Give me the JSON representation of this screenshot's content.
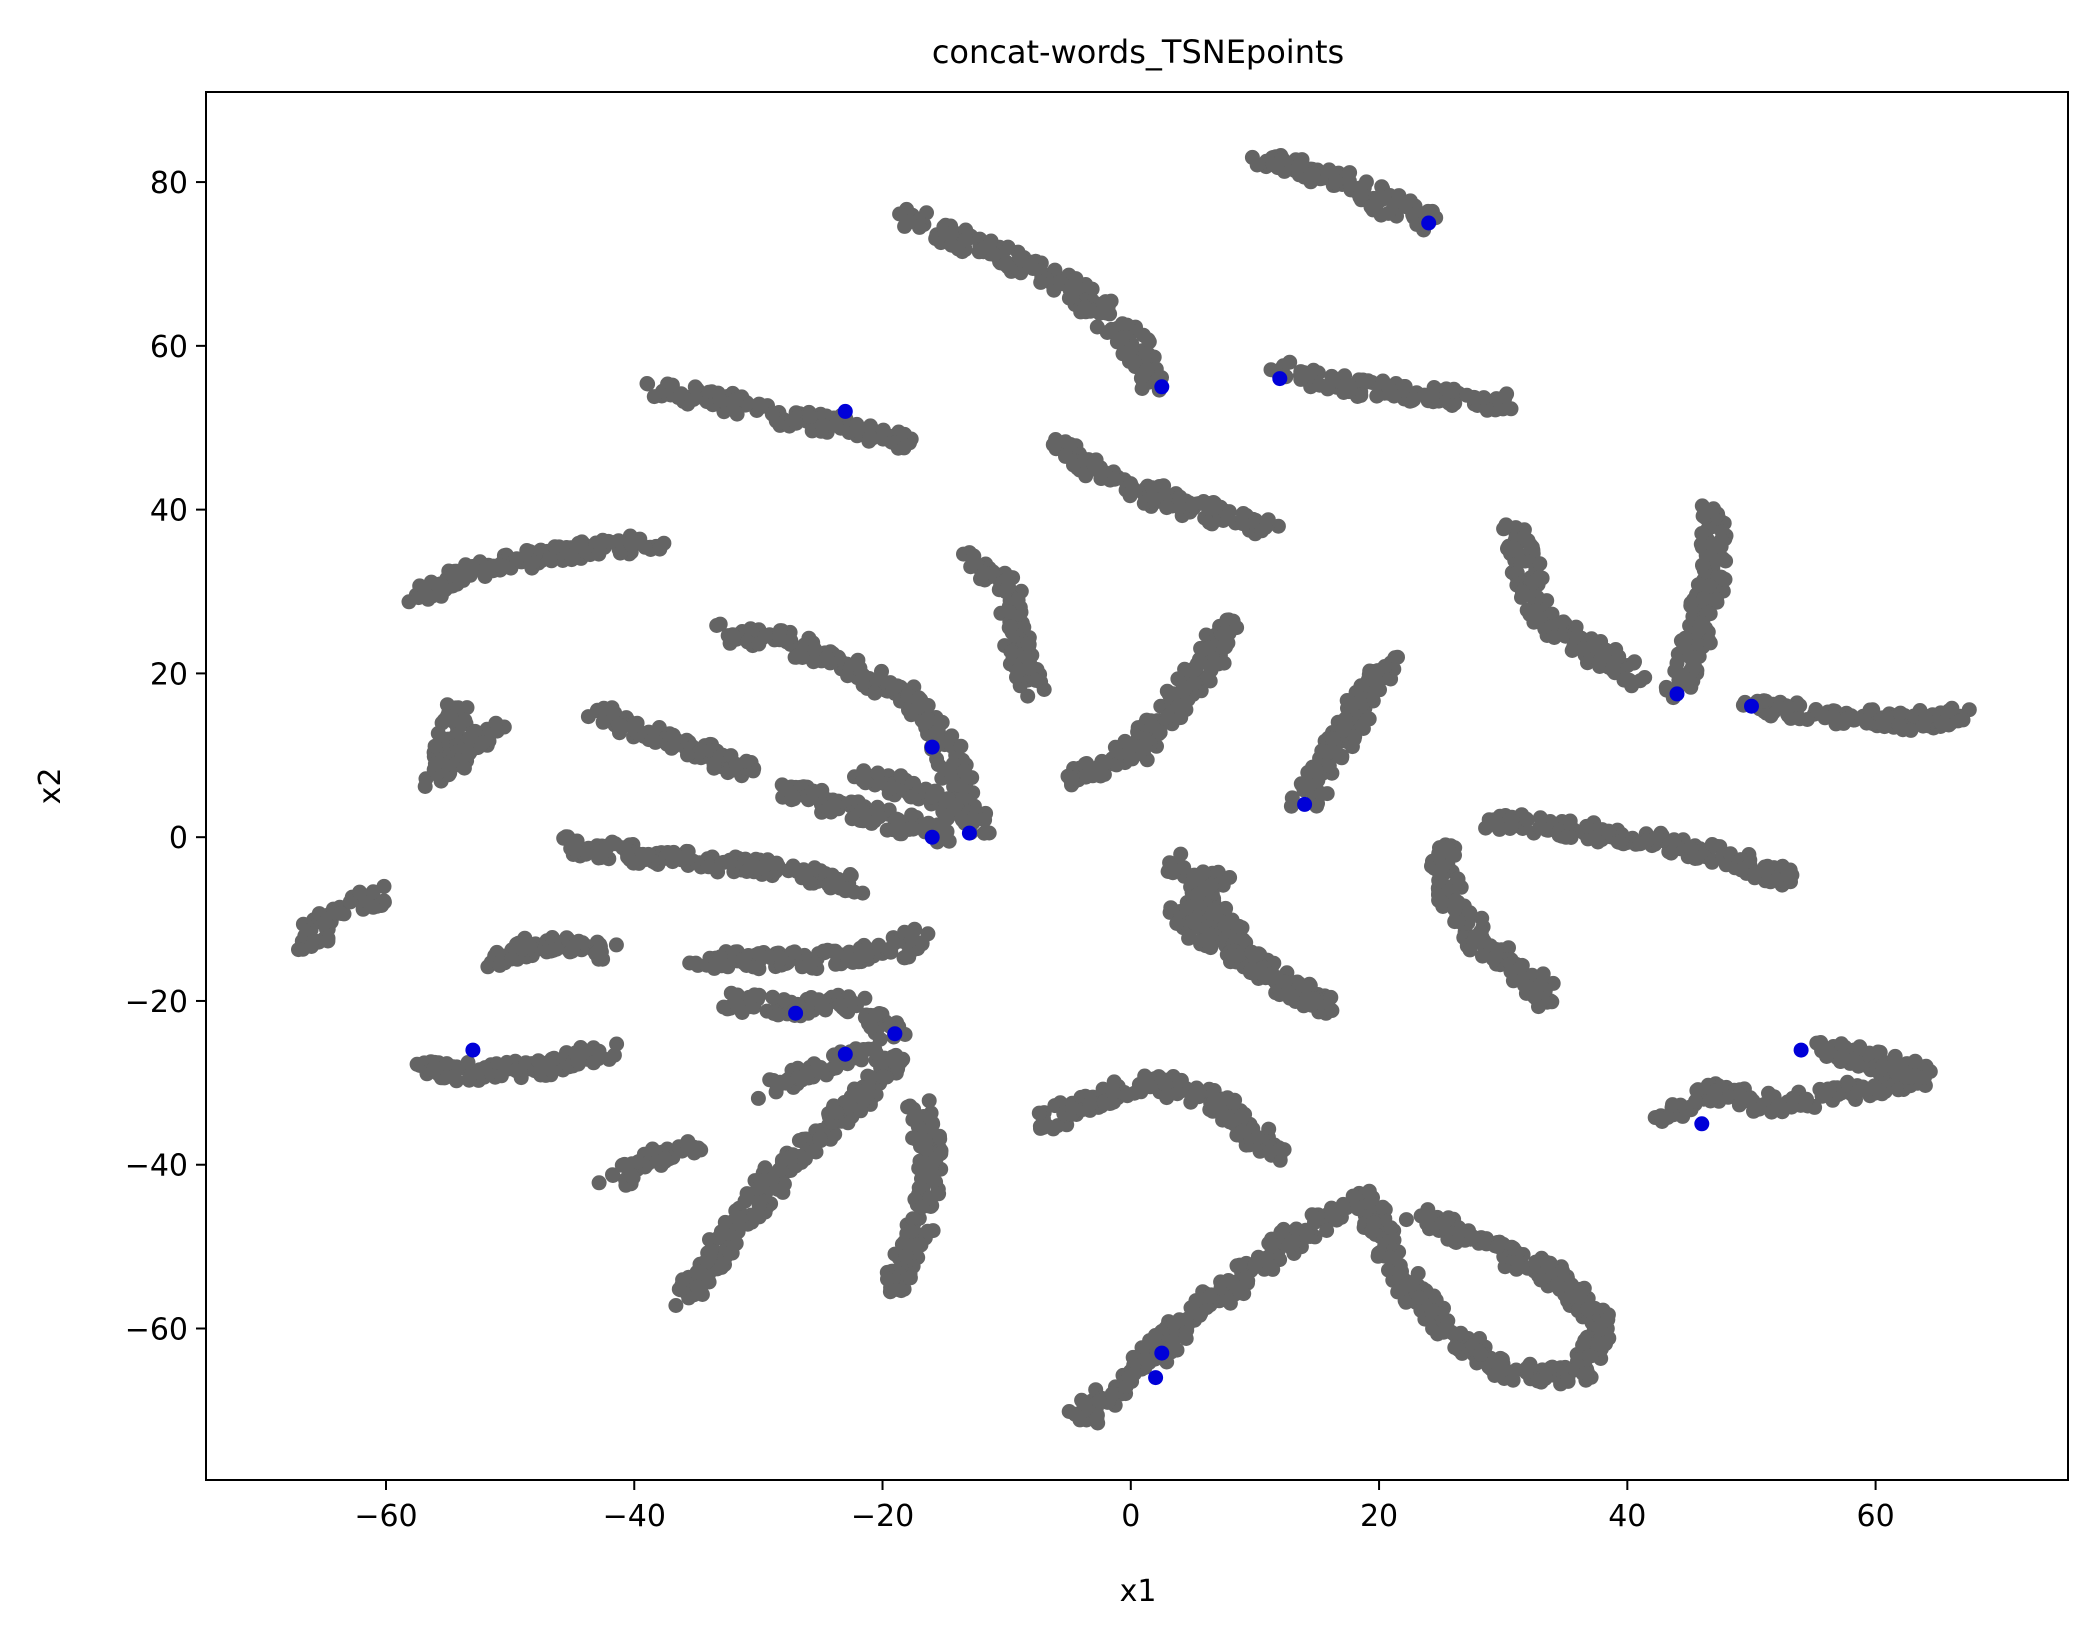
{
  "chart_data": {
    "type": "scatter",
    "title": "concat-words_TSNEpoints",
    "xlabel": "x1",
    "ylabel": "x2",
    "xlim": [
      -74.5,
      75.5
    ],
    "ylim": [
      -78.5,
      91
    ],
    "xticks": [
      -60,
      -40,
      -20,
      0,
      20,
      40,
      60
    ],
    "yticks": [
      -60,
      -40,
      -20,
      0,
      20,
      40,
      60,
      80
    ],
    "xtick_labels": [
      "−60",
      "−40",
      "−20",
      "0",
      "20",
      "40",
      "60"
    ],
    "ytick_labels": [
      "−60",
      "−40",
      "−20",
      "0",
      "20",
      "40",
      "60",
      "80"
    ],
    "grid": false,
    "legend": "none",
    "colors": {
      "main": "#646464",
      "highlight": "#0000d8"
    },
    "series": [
      {
        "color": "#646464",
        "clusters": [
          [
            [
              10,
              83
            ],
            [
              15,
              81
            ],
            [
              20,
              78
            ],
            [
              24,
              75
            ]
          ],
          [
            [
              -18,
              76
            ],
            [
              -12,
              72
            ],
            [
              -7,
              69
            ],
            [
              -3,
              65
            ],
            [
              0,
              61
            ],
            [
              2,
              55
            ]
          ],
          [
            [
              -38,
              55
            ],
            [
              -32,
              53
            ],
            [
              -27,
              51
            ],
            [
              -22,
              50
            ],
            [
              -18,
              48
            ]
          ],
          [
            [
              12,
              57
            ],
            [
              18,
              55
            ],
            [
              24,
              54
            ],
            [
              30,
              53
            ]
          ],
          [
            [
              -6,
              48
            ],
            [
              -2,
              44
            ],
            [
              3,
              41
            ],
            [
              8,
              39
            ],
            [
              11,
              38
            ]
          ],
          [
            [
              -58,
              29
            ],
            [
              -54,
              32
            ],
            [
              -49,
              34
            ],
            [
              -44,
              35
            ],
            [
              -38,
              36
            ]
          ],
          [
            [
              -13,
              34
            ],
            [
              -10,
              30
            ],
            [
              -9,
              24
            ],
            [
              -8,
              18
            ]
          ],
          [
            [
              31,
              38
            ],
            [
              32,
              32
            ],
            [
              33,
              27
            ],
            [
              37,
              23
            ],
            [
              41,
              19
            ]
          ],
          [
            [
              47,
              40
            ],
            [
              47,
              33
            ],
            [
              46,
              26
            ],
            [
              44,
              18
            ]
          ],
          [
            [
              -33,
              25
            ],
            [
              -28,
              24
            ],
            [
              -23,
              21
            ],
            [
              -18,
              17
            ],
            [
              -15,
              11
            ],
            [
              -13,
              3
            ],
            [
              -12,
              1
            ]
          ],
          [
            [
              -5,
              7
            ],
            [
              0,
              10
            ],
            [
              3,
              15
            ],
            [
              6,
              21
            ],
            [
              8,
              26
            ]
          ],
          [
            [
              14,
              4
            ],
            [
              16,
              9
            ],
            [
              18,
              15
            ],
            [
              21,
              22
            ]
          ],
          [
            [
              -54,
              16
            ],
            [
              -55,
              12
            ],
            [
              -56,
              7
            ],
            [
              -51,
              14
            ]
          ],
          [
            [
              -43,
              15
            ],
            [
              -38,
              12
            ],
            [
              -34,
              10
            ],
            [
              -31,
              8
            ]
          ],
          [
            [
              -28,
              6
            ],
            [
              -24,
              4
            ],
            [
              -19,
              2
            ],
            [
              -15,
              0
            ]
          ],
          [
            [
              -22,
              8
            ],
            [
              -18,
              6
            ],
            [
              -14,
              3
            ]
          ],
          [
            [
              50,
              16
            ],
            [
              56,
              15
            ],
            [
              62,
              14
            ],
            [
              68,
              15
            ]
          ],
          [
            [
              -46,
              -1
            ],
            [
              -40,
              -2
            ],
            [
              -34,
              -3
            ],
            [
              -28,
              -4
            ],
            [
              -22,
              -6
            ]
          ],
          [
            [
              29,
              2
            ],
            [
              35,
              1
            ],
            [
              41,
              0
            ],
            [
              47,
              -2
            ],
            [
              53,
              -5
            ]
          ],
          [
            [
              25,
              -1
            ],
            [
              26,
              -8
            ],
            [
              28,
              -13
            ],
            [
              31,
              -16
            ],
            [
              34,
              -20
            ]
          ],
          [
            [
              3,
              -3
            ],
            [
              6,
              -8
            ],
            [
              9,
              -14
            ],
            [
              12,
              -18
            ],
            [
              16,
              -21
            ],
            [
              4,
              -10
            ],
            [
              7,
              -4
            ]
          ],
          [
            [
              -66,
              -13
            ],
            [
              -65,
              -10
            ],
            [
              -62,
              -8
            ],
            [
              -60,
              -7
            ]
          ],
          [
            [
              -52,
              -15
            ],
            [
              -47,
              -13
            ],
            [
              -42,
              -14
            ]
          ],
          [
            [
              -35,
              -15
            ],
            [
              -30,
              -15
            ],
            [
              -24,
              -15
            ],
            [
              -19,
              -14
            ],
            [
              -17,
              -12
            ]
          ],
          [
            [
              -57,
              -28
            ],
            [
              -52,
              -29
            ],
            [
              -47,
              -28
            ],
            [
              -42,
              -26
            ]
          ],
          [
            [
              -33,
              -20
            ],
            [
              -27,
              -21
            ],
            [
              -23,
              -20
            ],
            [
              -19,
              -24
            ]
          ],
          [
            [
              -29,
              -31
            ],
            [
              -25,
              -28
            ],
            [
              -21,
              -26
            ]
          ],
          [
            [
              -36,
              -57
            ],
            [
              -33,
              -50
            ],
            [
              -30,
              -44
            ],
            [
              -27,
              -39
            ],
            [
              -24,
              -35
            ],
            [
              -21,
              -31
            ],
            [
              -19,
              -27
            ]
          ],
          [
            [
              -19,
              -55
            ],
            [
              -17,
              -48
            ],
            [
              -16,
              -40
            ],
            [
              -17,
              -33
            ]
          ],
          [
            [
              -42,
              -42
            ],
            [
              -38,
              -39
            ],
            [
              -35,
              -37
            ]
          ],
          [
            [
              -7,
              -35
            ],
            [
              -3,
              -32
            ],
            [
              2,
              -30
            ],
            [
              7,
              -32
            ],
            [
              12,
              -39
            ]
          ],
          [
            [
              -4,
              -71
            ],
            [
              0,
              -66
            ],
            [
              4,
              -60
            ],
            [
              8,
              -55
            ],
            [
              13,
              -49
            ],
            [
              17,
              -45
            ]
          ],
          [
            [
              19,
              -44
            ],
            [
              21,
              -52
            ],
            [
              25,
              -59
            ],
            [
              30,
              -65
            ],
            [
              36,
              -66
            ],
            [
              38,
              -60
            ],
            [
              35,
              -54
            ],
            [
              29,
              -50
            ],
            [
              23,
              -46
            ]
          ],
          [
            [
              43,
              -34
            ],
            [
              47,
              -31
            ],
            [
              52,
              -33
            ],
            [
              58,
              -31
            ],
            [
              64,
              -29
            ],
            [
              56,
              -26
            ],
            [
              60,
              -27
            ]
          ]
        ]
      },
      {
        "color": "#0000d8",
        "points": [
          [
            -53,
            -26
          ],
          [
            -27,
            -21.5
          ],
          [
            -23,
            -26.5
          ],
          [
            -19,
            -24
          ],
          [
            -23,
            52
          ],
          [
            2.5,
            55
          ],
          [
            12,
            56
          ],
          [
            24,
            75
          ],
          [
            14,
            4
          ],
          [
            -16,
            0
          ],
          [
            -13,
            0.5
          ],
          [
            -16,
            11
          ],
          [
            44,
            17.5
          ],
          [
            50,
            16
          ],
          [
            54,
            -26
          ],
          [
            46,
            -35
          ],
          [
            2,
            -66
          ],
          [
            2.5,
            -63
          ]
        ]
      }
    ]
  }
}
